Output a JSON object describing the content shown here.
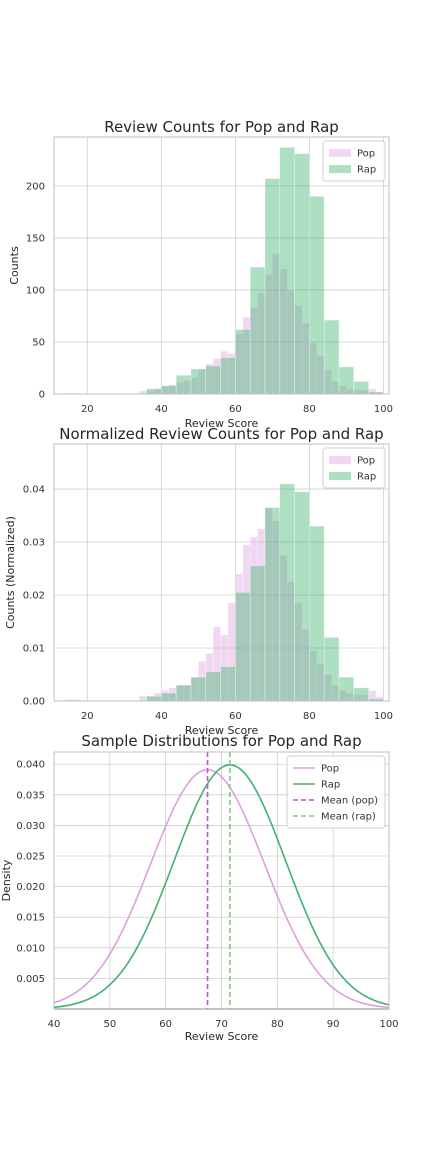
{
  "colors": {
    "pop": "#dda0dd",
    "rap": "#3cb371",
    "pop_line": "#dda0dd",
    "rap_line": "#3cb371",
    "pop_mean": "#ba55d3",
    "rap_mean": "#80c880"
  },
  "chart_data": [
    {
      "type": "bar",
      "subtype": "overlapping-histogram",
      "title": "Review Counts for Pop and Rap",
      "xlabel": "Review Score",
      "ylabel": "Counts",
      "xlim": [
        11,
        101.5
      ],
      "ylim": [
        0,
        247
      ],
      "xticks": [
        20,
        40,
        60,
        80,
        100
      ],
      "yticks": [
        0,
        50,
        100,
        150,
        200
      ],
      "grid": true,
      "legend": "top-right",
      "series": [
        {
          "name": "Pop",
          "color": "#dda0dd",
          "bin_edges": [
            14,
            16,
            18,
            20,
            22,
            24,
            26,
            28,
            30,
            32,
            34,
            36,
            38,
            40,
            42,
            44,
            46,
            48,
            50,
            52,
            54,
            56,
            58,
            60,
            62,
            64,
            66,
            68,
            70,
            72,
            74,
            76,
            78,
            80,
            82,
            84,
            86,
            88,
            90,
            92,
            94,
            96,
            98,
            100
          ],
          "values": [
            1,
            1,
            0,
            0,
            0,
            0,
            0,
            0,
            0,
            0,
            3,
            3,
            5,
            7,
            9,
            11,
            13,
            16,
            24,
            29,
            34,
            41,
            39,
            58,
            74,
            83,
            97,
            115,
            135,
            120,
            100,
            85,
            68,
            49,
            37,
            23,
            12,
            8,
            5,
            4,
            4,
            5,
            2
          ]
        },
        {
          "name": "Rap",
          "color": "#3cb371",
          "bin_edges": [
            36,
            40,
            44,
            48,
            52,
            56,
            60,
            64,
            68,
            72,
            76,
            80,
            84,
            88,
            92,
            96,
            100
          ],
          "values": [
            5,
            8,
            18,
            24,
            27,
            35,
            62,
            122,
            207,
            237,
            231,
            190,
            71,
            26,
            12,
            2
          ]
        }
      ]
    },
    {
      "type": "bar",
      "subtype": "overlapping-histogram",
      "title": "Normalized Review Counts for Pop and Rap",
      "xlabel": "Review Score",
      "ylabel": "Counts (Normalized)",
      "xlim": [
        11,
        101.5
      ],
      "ylim": [
        0,
        0.0485
      ],
      "xticks": [
        20,
        40,
        60,
        80,
        100
      ],
      "yticks": [
        0.0,
        0.01,
        0.02,
        0.03,
        0.04
      ],
      "ytick_labels": [
        "0.00",
        "0.01",
        "0.02",
        "0.03",
        "0.04"
      ],
      "grid": true,
      "legend": "top-right",
      "series": [
        {
          "name": "Pop",
          "color": "#dda0dd",
          "bin_edges": [
            14,
            16,
            18,
            20,
            22,
            24,
            26,
            28,
            30,
            32,
            34,
            36,
            38,
            40,
            42,
            44,
            46,
            48,
            50,
            52,
            54,
            56,
            58,
            60,
            62,
            64,
            66,
            68,
            70,
            72,
            74,
            76,
            78,
            80,
            82,
            84,
            86,
            88,
            90,
            92,
            94,
            96,
            98,
            100
          ],
          "values": [
            0.0003,
            0.0003,
            0,
            0,
            0,
            0,
            0,
            0,
            0,
            0,
            0.001,
            0.001,
            0.0015,
            0.002,
            0.0025,
            0.003,
            0.003,
            0.0045,
            0.0075,
            0.009,
            0.014,
            0.0125,
            0.0185,
            0.024,
            0.0295,
            0.031,
            0.0325,
            0.0365,
            0.034,
            0.0275,
            0.0225,
            0.0185,
            0.0135,
            0.0095,
            0.007,
            0.005,
            0.003,
            0.002,
            0.0015,
            0.0012,
            0.0012,
            0.002,
            0.0008
          ]
        },
        {
          "name": "Rap",
          "color": "#3cb371",
          "bin_edges": [
            36,
            40,
            44,
            48,
            52,
            56,
            60,
            64,
            68,
            72,
            76,
            80,
            84,
            88,
            92,
            96,
            100
          ],
          "values": [
            0.0009,
            0.0015,
            0.003,
            0.0045,
            0.0055,
            0.0065,
            0.0205,
            0.0255,
            0.0365,
            0.041,
            0.0395,
            0.033,
            0.012,
            0.0045,
            0.0025,
            0.0004
          ]
        }
      ]
    },
    {
      "type": "line",
      "title": "Sample Distributions for Pop and Rap",
      "xlabel": "Review Score",
      "ylabel": "Density",
      "xlim": [
        40,
        100
      ],
      "ylim": [
        0,
        0.042
      ],
      "xticks": [
        40,
        50,
        60,
        70,
        80,
        90,
        100
      ],
      "yticks": [
        0.005,
        0.01,
        0.015,
        0.02,
        0.025,
        0.03,
        0.035,
        0.04
      ],
      "ytick_labels": [
        "0.005",
        "0.010",
        "0.015",
        "0.020",
        "0.025",
        "0.030",
        "0.035",
        "0.040"
      ],
      "grid": true,
      "legend": "top-right",
      "series": [
        {
          "name": "Pop",
          "color": "#dda0dd",
          "distribution": "normal",
          "mean": 67.5,
          "std": 10.2,
          "style": "solid"
        },
        {
          "name": "Rap",
          "color": "#3cb371",
          "distribution": "normal",
          "mean": 71.5,
          "std": 10.0,
          "style": "solid"
        },
        {
          "name": "Mean (pop)",
          "color": "#ba55d3",
          "x": 67.5,
          "style": "dashed",
          "kind": "vline"
        },
        {
          "name": "Mean (rap)",
          "color": "#80c880",
          "x": 71.5,
          "style": "dashed",
          "kind": "vline"
        }
      ]
    }
  ]
}
